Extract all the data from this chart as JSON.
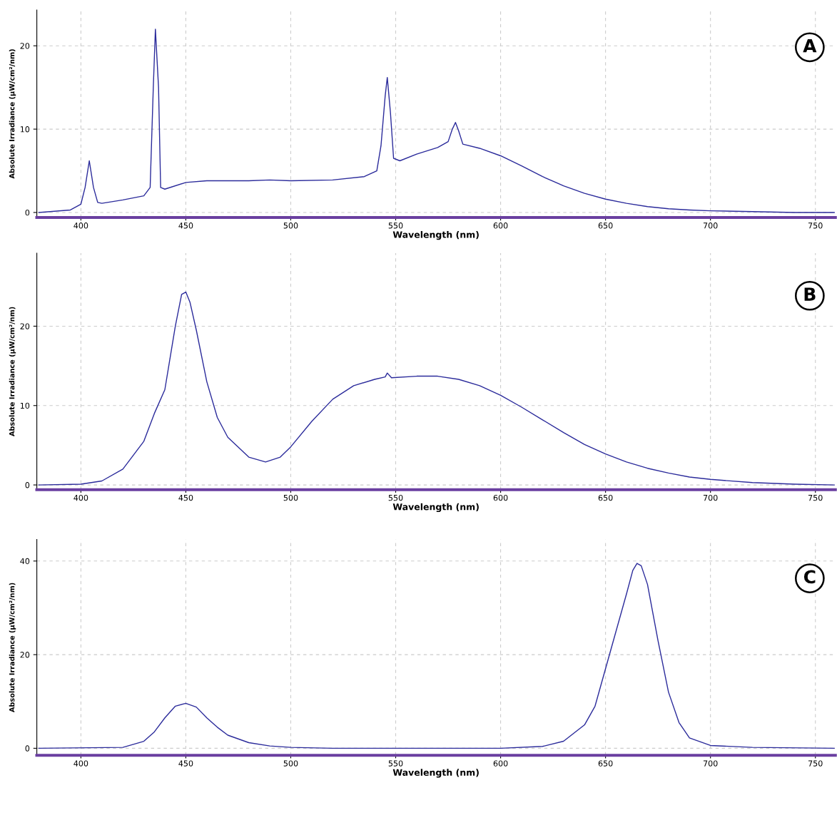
{
  "chart_data": [
    {
      "type": "line",
      "xlabel": "Wavelength (nm)",
      "ylabel": "Absolute Irradiance (µW/cm²/nm)",
      "annotations": [
        "A"
      ],
      "grid": true,
      "xlim": [
        379,
        759.5
      ],
      "xticks": [
        400,
        450,
        500,
        550,
        600,
        650,
        700,
        750
      ],
      "ylim": [
        -0.6,
        24.3
      ],
      "yticks": [
        0,
        10,
        20
      ],
      "series": [
        {
          "color": "#2b2b9b",
          "x": [
            380,
            395,
            400,
            402,
            404,
            406,
            408,
            410,
            420,
            430,
            433,
            434.5,
            435.5,
            437,
            438,
            440,
            450,
            460,
            480,
            490,
            500,
            520,
            535,
            541,
            543,
            545,
            546,
            547.5,
            549,
            552,
            560,
            570,
            575,
            577,
            578.5,
            580,
            582,
            590,
            600,
            610,
            620,
            630,
            640,
            650,
            660,
            670,
            680,
            690,
            700,
            720,
            740,
            759
          ],
          "values": [
            0,
            0.3,
            1.0,
            3,
            6.2,
            3,
            1.2,
            1.1,
            1.5,
            2.0,
            3,
            15,
            22,
            15,
            3,
            2.8,
            3.6,
            3.8,
            3.8,
            3.9,
            3.8,
            3.9,
            4.3,
            5,
            8,
            14,
            16.2,
            12,
            6.5,
            6.2,
            7.0,
            7.8,
            8.5,
            10,
            10.8,
            9.8,
            8.2,
            7.7,
            6.8,
            5.6,
            4.3,
            3.2,
            2.3,
            1.6,
            1.1,
            0.7,
            0.45,
            0.3,
            0.2,
            0.1,
            0,
            0
          ]
        }
      ]
    },
    {
      "type": "line",
      "xlabel": "Wavelength (nm)",
      "ylabel": "Absolute Irradiance (µW/cm²/nm)",
      "annotations": [
        "B"
      ],
      "grid": true,
      "xlim": [
        379,
        759.5
      ],
      "xticks": [
        400,
        450,
        500,
        550,
        600,
        650,
        700,
        750
      ],
      "ylim": [
        -0.6,
        29.2
      ],
      "yticks": [
        0,
        10,
        20
      ],
      "series": [
        {
          "color": "#2b2b9b",
          "x": [
            380,
            400,
            410,
            420,
            430,
            435,
            440,
            445,
            448,
            450,
            452,
            455,
            460,
            465,
            470,
            480,
            488,
            495,
            500,
            510,
            520,
            530,
            540,
            545,
            546,
            548,
            560,
            570,
            580,
            590,
            600,
            610,
            620,
            630,
            640,
            650,
            660,
            670,
            680,
            690,
            700,
            720,
            740,
            759
          ],
          "values": [
            0,
            0.1,
            0.5,
            2,
            5.5,
            9,
            12,
            20,
            24,
            24.3,
            23,
            19.5,
            13,
            8.5,
            6,
            3.5,
            2.9,
            3.5,
            4.8,
            8,
            10.8,
            12.5,
            13.3,
            13.6,
            14.1,
            13.5,
            13.7,
            13.7,
            13.3,
            12.5,
            11.3,
            9.8,
            8.2,
            6.6,
            5.1,
            3.9,
            2.9,
            2.1,
            1.5,
            1.0,
            0.7,
            0.3,
            0.1,
            0
          ]
        }
      ]
    },
    {
      "type": "line",
      "xlabel": "Wavelength (nm)",
      "ylabel": "Absolute Irradiance (µW/cm²/nm)",
      "annotations": [
        "C"
      ],
      "grid": true,
      "xlim": [
        379,
        759.5
      ],
      "xticks": [
        400,
        450,
        500,
        550,
        600,
        650,
        700,
        750
      ],
      "ylim": [
        -1.5,
        44.6
      ],
      "yticks": [
        0,
        20,
        40
      ],
      "series": [
        {
          "color": "#2b2b9b",
          "x": [
            380,
            420,
            430,
            435,
            440,
            445,
            450,
            455,
            460,
            465,
            470,
            480,
            490,
            500,
            520,
            600,
            620,
            630,
            640,
            645,
            650,
            655,
            660,
            663,
            665,
            667,
            670,
            675,
            680,
            685,
            690,
            700,
            720,
            759
          ],
          "values": [
            0,
            0.2,
            1.5,
            3.5,
            6.5,
            9,
            9.6,
            8.8,
            6.5,
            4.5,
            2.8,
            1.2,
            0.5,
            0.2,
            0,
            0,
            0.4,
            1.5,
            5,
            9,
            17,
            25,
            33,
            38,
            39.5,
            39,
            35,
            23,
            12,
            5.5,
            2.2,
            0.6,
            0.2,
            0
          ]
        }
      ]
    }
  ]
}
